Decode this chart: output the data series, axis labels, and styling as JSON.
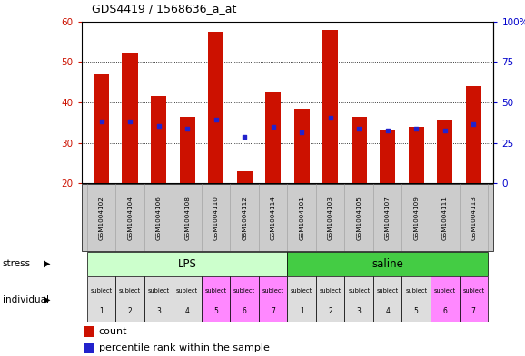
{
  "title": "GDS4419 / 1568636_a_at",
  "samples": [
    "GSM1004102",
    "GSM1004104",
    "GSM1004106",
    "GSM1004108",
    "GSM1004110",
    "GSM1004112",
    "GSM1004114",
    "GSM1004101",
    "GSM1004103",
    "GSM1004105",
    "GSM1004107",
    "GSM1004109",
    "GSM1004111",
    "GSM1004113"
  ],
  "counts": [
    47.0,
    52.0,
    41.5,
    36.5,
    57.5,
    23.0,
    42.5,
    38.5,
    58.0,
    36.5,
    33.0,
    34.0,
    35.5,
    44.0
  ],
  "percentile_ranks": [
    38.0,
    38.5,
    35.5,
    33.5,
    39.5,
    28.5,
    35.0,
    31.5,
    40.5,
    33.5,
    32.5,
    33.5,
    32.5,
    36.5
  ],
  "ylim_left": [
    20,
    60
  ],
  "ylim_right": [
    0,
    100
  ],
  "yticks_left": [
    20,
    30,
    40,
    50,
    60
  ],
  "yticks_right": [
    0,
    25,
    50,
    75,
    100
  ],
  "bar_color": "#cc1100",
  "dot_color": "#2222cc",
  "bar_width": 0.55,
  "lps_color": "#ccffcc",
  "saline_color": "#44cc44",
  "ind_gray": "#dddddd",
  "ind_pink": "#ff88ff",
  "ind_colors_lps": [
    "#dddddd",
    "#dddddd",
    "#dddddd",
    "#dddddd",
    "#ff88ff",
    "#ff88ff",
    "#ff88ff"
  ],
  "ind_colors_saline": [
    "#dddddd",
    "#dddddd",
    "#dddddd",
    "#dddddd",
    "#dddddd",
    "#ff88ff",
    "#ff88ff"
  ],
  "left_axis_color": "#cc1100",
  "right_axis_color": "#0000cc",
  "grid_linestyle": "dotted",
  "background_color": "#ffffff"
}
